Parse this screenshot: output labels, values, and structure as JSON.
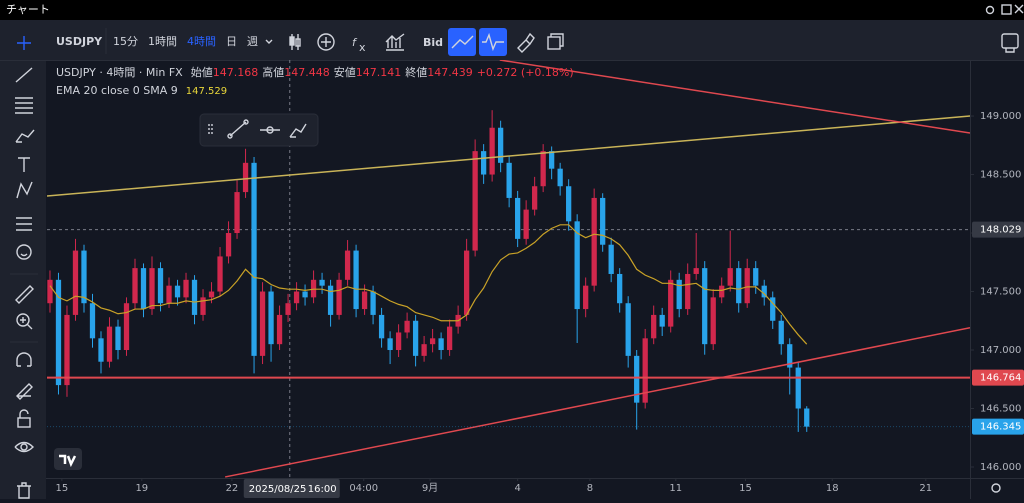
{
  "window": {
    "title": "チャート"
  },
  "toolbar": {
    "symbol": "USDJPY",
    "intervals": [
      "15分",
      "1時間",
      "4時間",
      "日",
      "週"
    ],
    "active_interval": 2,
    "price_type": "Bid"
  },
  "legend": {
    "symbol": "USDJPY · 4時間 · Min FX",
    "ohlc": [
      {
        "label": "始値",
        "value": 147.168
      },
      {
        "label": "高値",
        "value": 147.448
      },
      {
        "label": "安値",
        "value": 147.141
      },
      {
        "label": "終値",
        "value": 147.439
      }
    ],
    "change": "+0.272 (+0.18%)",
    "indicator": "EMA 20 close 0 SMA 9",
    "indicator_value": 147.529
  },
  "chart_data": {
    "type": "candlestick",
    "up_color": "#d1284d",
    "down_color": "#29a3ea",
    "xlim": [
      -0.35,
      108.2
    ],
    "ylim": [
      145.906,
      149.479
    ],
    "yticks": [
      {
        "value": 146,
        "label": "146.000"
      },
      {
        "value": 146.5,
        "label": "146.500"
      },
      {
        "value": 147,
        "label": "147.000"
      },
      {
        "value": 147.5,
        "label": "147.500"
      },
      {
        "value": 148,
        "label": "148.000"
      },
      {
        "value": 148.5,
        "label": "148.500"
      },
      {
        "value": 149,
        "label": "149.000"
      }
    ],
    "xticks": [
      {
        "value": 1.4,
        "label": "15"
      },
      {
        "value": 10.8,
        "label": "19"
      },
      {
        "value": 21.4,
        "label": "22"
      },
      {
        "value": 36.9,
        "label": "04:00"
      },
      {
        "value": 44.7,
        "label": "9月"
      },
      {
        "value": 55,
        "label": "4"
      },
      {
        "value": 63.5,
        "label": "8"
      },
      {
        "value": 73.6,
        "label": "11"
      },
      {
        "value": 81.8,
        "label": "15"
      },
      {
        "value": 92,
        "label": "18"
      },
      {
        "value": 103,
        "label": "21"
      }
    ],
    "open": [
      147.4,
      147.6,
      146.7,
      147.3,
      147.85,
      147.4,
      147.1,
      146.9,
      147.2,
      147.0,
      147.4,
      147.7,
      147.35,
      147.7,
      147.4,
      147.55,
      147.45,
      147.6,
      147.3,
      147.45,
      147.5,
      147.8,
      148.0,
      148.35,
      148.6,
      146.95,
      147.5,
      147.05,
      147.3,
      147.4,
      147.5,
      147.45,
      147.6,
      147.55,
      147.3,
      147.6,
      147.85,
      147.35,
      147.5,
      147.3,
      147.1,
      147.0,
      147.15,
      147.25,
      146.95,
      147.05,
      147.1,
      147.0,
      147.2,
      147.3,
      147.85,
      148.7,
      148.5,
      148.9,
      148.6,
      148.3,
      147.95,
      148.2,
      148.4,
      148.7,
      148.55,
      148.4,
      148.1,
      147.35,
      147.55,
      148.3,
      147.9,
      147.65,
      147.4,
      146.95,
      146.55,
      147.1,
      147.3,
      147.2,
      147.6,
      147.35,
      147.65,
      147.7,
      147.05,
      147.45,
      147.55,
      147.7,
      147.4,
      147.7,
      147.55,
      147.45,
      147.25,
      147.05,
      146.85,
      146.5
    ],
    "high": [
      147.68,
      147.66,
      147.38,
      147.95,
      147.9,
      147.48,
      147.16,
      147.28,
      147.26,
      147.45,
      147.78,
      147.74,
      147.8,
      147.75,
      147.62,
      147.6,
      147.66,
      147.64,
      147.52,
      147.58,
      147.88,
      148.1,
      148.45,
      148.72,
      148.65,
      147.58,
      147.55,
      147.38,
      147.48,
      147.58,
      147.56,
      147.68,
      147.66,
      147.6,
      147.66,
      147.94,
      147.9,
      147.56,
      147.55,
      147.36,
      147.16,
      147.22,
      147.32,
      147.3,
      147.12,
      147.18,
      147.15,
      147.26,
      147.38,
      147.95,
      148.8,
      148.76,
      149.05,
      148.96,
      148.66,
      148.36,
      148.28,
      148.48,
      148.76,
      148.74,
      148.6,
      148.46,
      148.16,
      147.62,
      148.38,
      148.34,
      147.96,
      147.7,
      147.46,
      147.0,
      147.18,
      147.38,
      147.36,
      147.68,
      147.66,
      147.74,
      148.0,
      147.76,
      147.52,
      147.62,
      148.02,
      147.76,
      147.78,
      147.76,
      147.6,
      147.5,
      147.3,
      147.1,
      146.9,
      146.52
    ],
    "low": [
      147.32,
      146.62,
      146.6,
      147.25,
      147.32,
      147.02,
      146.8,
      146.85,
      146.92,
      146.95,
      147.35,
      147.28,
      147.3,
      147.33,
      147.36,
      147.38,
      147.4,
      147.22,
      147.25,
      147.4,
      147.46,
      147.74,
      147.95,
      148.3,
      146.8,
      146.88,
      146.9,
      147.0,
      147.24,
      147.34,
      147.38,
      147.4,
      147.48,
      147.2,
      147.26,
      147.55,
      147.28,
      147.3,
      147.22,
      147.02,
      146.88,
      146.94,
      147.1,
      146.86,
      146.9,
      146.98,
      146.92,
      146.95,
      147.14,
      147.25,
      147.8,
      148.42,
      148.44,
      148.52,
      148.22,
      147.88,
      147.9,
      148.15,
      148.35,
      148.46,
      148.32,
      148.02,
      147.06,
      147.28,
      147.5,
      147.84,
      147.58,
      147.32,
      146.85,
      146.32,
      146.5,
      147.05,
      147.12,
      147.15,
      147.28,
      147.3,
      147.6,
      146.96,
      147.0,
      147.4,
      147.5,
      147.32,
      147.36,
      147.48,
      147.38,
      147.18,
      146.96,
      146.62,
      146.3,
      146.3
    ],
    "close": [
      147.6,
      146.7,
      147.3,
      147.85,
      147.4,
      147.1,
      146.9,
      147.2,
      147.0,
      147.4,
      147.7,
      147.35,
      147.7,
      147.4,
      147.55,
      147.45,
      147.6,
      147.3,
      147.45,
      147.5,
      147.8,
      148.0,
      148.35,
      148.6,
      146.95,
      147.5,
      147.05,
      147.3,
      147.4,
      147.5,
      147.45,
      147.6,
      147.55,
      147.3,
      147.6,
      147.85,
      147.35,
      147.5,
      147.3,
      147.1,
      147.0,
      147.15,
      147.25,
      146.95,
      147.05,
      147.1,
      147.0,
      147.2,
      147.3,
      147.85,
      148.7,
      148.5,
      148.9,
      148.6,
      148.3,
      147.95,
      148.2,
      148.4,
      148.7,
      148.55,
      148.4,
      148.1,
      147.35,
      147.55,
      148.3,
      147.9,
      147.65,
      147.4,
      146.95,
      146.55,
      147.1,
      147.3,
      147.2,
      147.6,
      147.35,
      147.65,
      147.7,
      147.05,
      147.45,
      147.55,
      147.7,
      147.4,
      147.7,
      147.55,
      147.45,
      147.25,
      147.05,
      146.85,
      146.5,
      146.345
    ],
    "ema": {
      "color": "#c9a227",
      "values": [
        147.55,
        147.45,
        147.42,
        147.46,
        147.45,
        147.41,
        147.36,
        147.34,
        147.31,
        147.32,
        147.35,
        147.35,
        147.38,
        147.38,
        147.4,
        147.4,
        147.42,
        147.41,
        147.42,
        147.43,
        147.46,
        147.51,
        147.59,
        147.69,
        147.62,
        147.61,
        147.56,
        147.53,
        147.52,
        147.52,
        147.51,
        147.52,
        147.52,
        147.5,
        147.51,
        147.54,
        147.52,
        147.52,
        147.5,
        147.46,
        147.42,
        147.39,
        147.37,
        147.32,
        147.3,
        147.28,
        147.25,
        147.25,
        147.25,
        147.3,
        147.43,
        147.53,
        147.67,
        147.77,
        147.82,
        147.83,
        147.87,
        147.92,
        147.99,
        148.04,
        148.07,
        148.07,
        148.0,
        147.96,
        147.99,
        147.98,
        147.95,
        147.9,
        147.81,
        147.69,
        147.64,
        147.61,
        147.57,
        147.57,
        147.55,
        147.56,
        147.57,
        147.52,
        147.51,
        147.51,
        147.53,
        147.52,
        147.54,
        147.54,
        147.48,
        147.4,
        147.32,
        147.22,
        147.13,
        147.05
      ]
    },
    "lines": [
      {
        "color": "#c9b458",
        "points": [
          [
            -0.35,
            148.316
          ],
          [
            108.2,
            149.0
          ]
        ]
      },
      {
        "color": "#e0484f",
        "points": [
          [
            52.9,
            149.479
          ],
          [
            108.2,
            148.855
          ]
        ]
      },
      {
        "color": "#e0484f",
        "points": [
          [
            20.6,
            145.915
          ],
          [
            108.2,
            147.19
          ]
        ]
      }
    ],
    "hline": {
      "value": 146.764,
      "color": "#e0484f"
    },
    "last_price": {
      "value": 146.345,
      "color": "#29a3ea"
    },
    "crosshair": {
      "x": 28.2,
      "y": 148.029,
      "date": "2025/08/25",
      "time": "16:00"
    }
  }
}
